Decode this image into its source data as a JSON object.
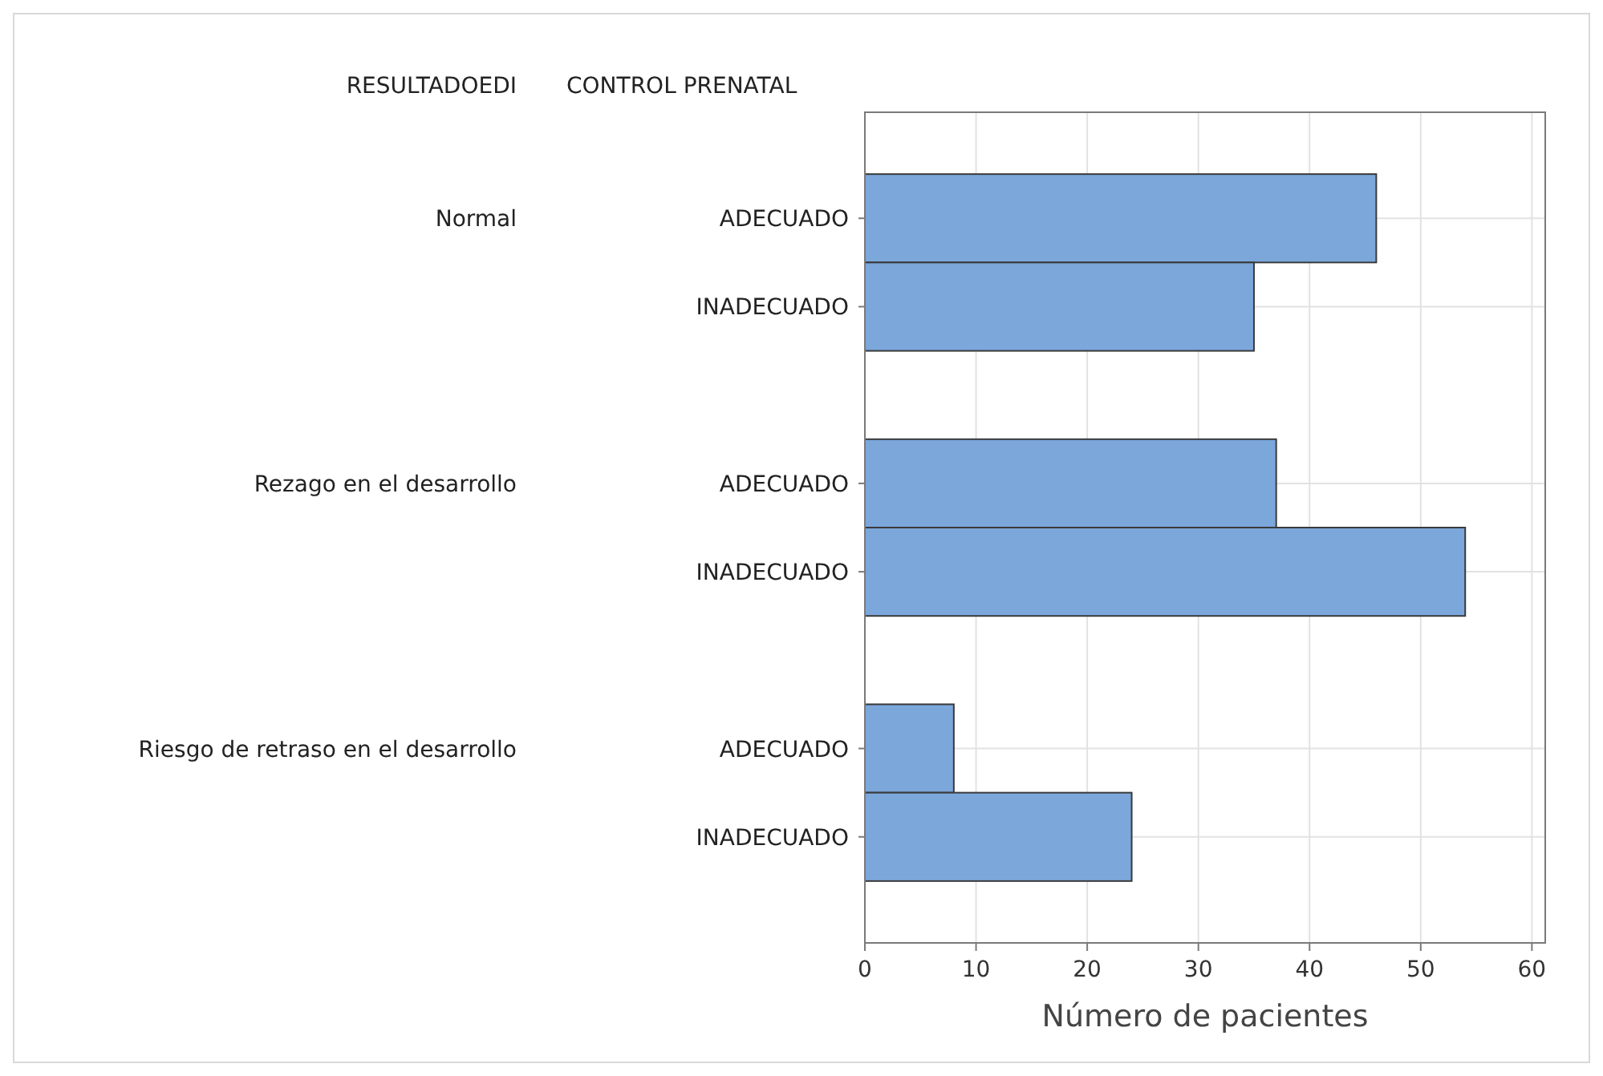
{
  "chart_data": {
    "type": "bar",
    "orientation": "horizontal",
    "xlabel": "Número de pacientes",
    "annotations": [
      "RESULTADOEDI",
      "CONTROL PRENATAL",
      "Normal",
      "Rezago en el desarrollo",
      "Riesgo de retraso en el desarrollo"
    ],
    "categories": [
      "ADECUADO",
      "INADECUADO",
      null,
      "ADECUADO",
      "INADECUADO",
      null,
      "ADECUADO",
      "INADECUADO"
    ],
    "values": [
      46,
      35,
      null,
      37,
      54,
      null,
      8,
      24
    ],
    "color": "#7ba7db",
    "xlim": [
      0,
      61.2
    ],
    "xticks": [
      0,
      10,
      20,
      30,
      40,
      50,
      60
    ],
    "grid": true
  }
}
